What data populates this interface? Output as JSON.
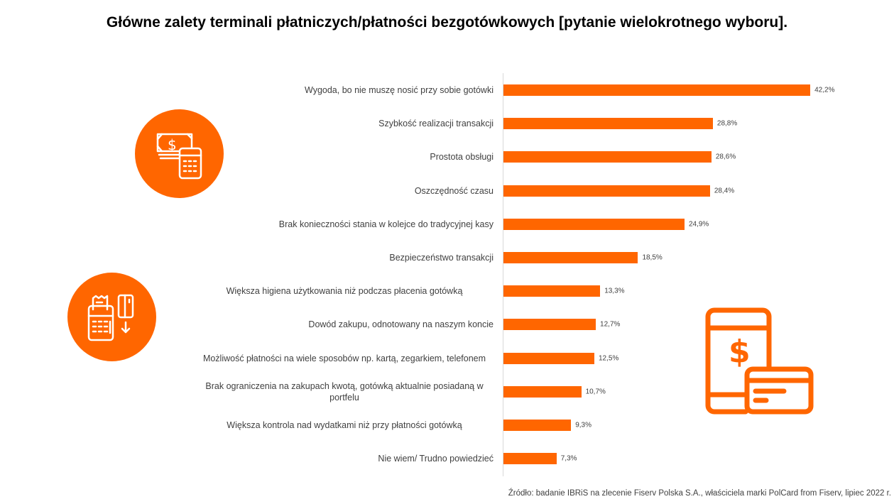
{
  "chart_data": {
    "type": "bar",
    "orientation": "horizontal",
    "title": "Główne zalety terminali płatniczych/płatności bezgotówkowych [pytanie wielokrotnego wyboru].",
    "categories": [
      "Wygoda, bo nie muszę nosić przy sobie gotówki",
      "Szybkość realizacji transakcji",
      "Prostota obsługi",
      "Oszczędność czasu",
      "Brak konieczności stania w kolejce do tradycyjnej kasy",
      "Bezpieczeństwo transakcji",
      "Większa higiena użytkowania niż podczas płacenia gotówką",
      "Dowód zakupu, odnotowany na naszym koncie",
      "Możliwość płatności na wiele sposobów np. kartą, zegarkiem, telefonem",
      "Brak ograniczenia na zakupach kwotą, gotówką aktualnie posiadaną w portfelu",
      "Większa kontrola nad wydatkami niż przy płatności gotówką",
      "Nie wiem/ Trudno powiedzieć"
    ],
    "values": [
      42.2,
      28.8,
      28.6,
      28.4,
      24.9,
      18.5,
      13.3,
      12.7,
      12.5,
      10.7,
      9.3,
      7.3
    ],
    "value_labels": [
      "42,2%",
      "28,8%",
      "28,6%",
      "28,4%",
      "24,9%",
      "18,5%",
      "13,3%",
      "12,7%",
      "12,5%",
      "10,7%",
      "9,3%",
      "7,3%"
    ],
    "unit": "%",
    "xlim": [
      0,
      45
    ],
    "grid": false,
    "bar_color": "#FF6600"
  },
  "source": "Źródło: badanie IBRiS na zlecenie Fiserv Polska S.A., właściciela marki PolCard from Fiserv, lipiec 2022 r.",
  "icons": [
    "money-calculator-icon",
    "payment-terminal-card-icon",
    "phone-card-payment-icon"
  ]
}
